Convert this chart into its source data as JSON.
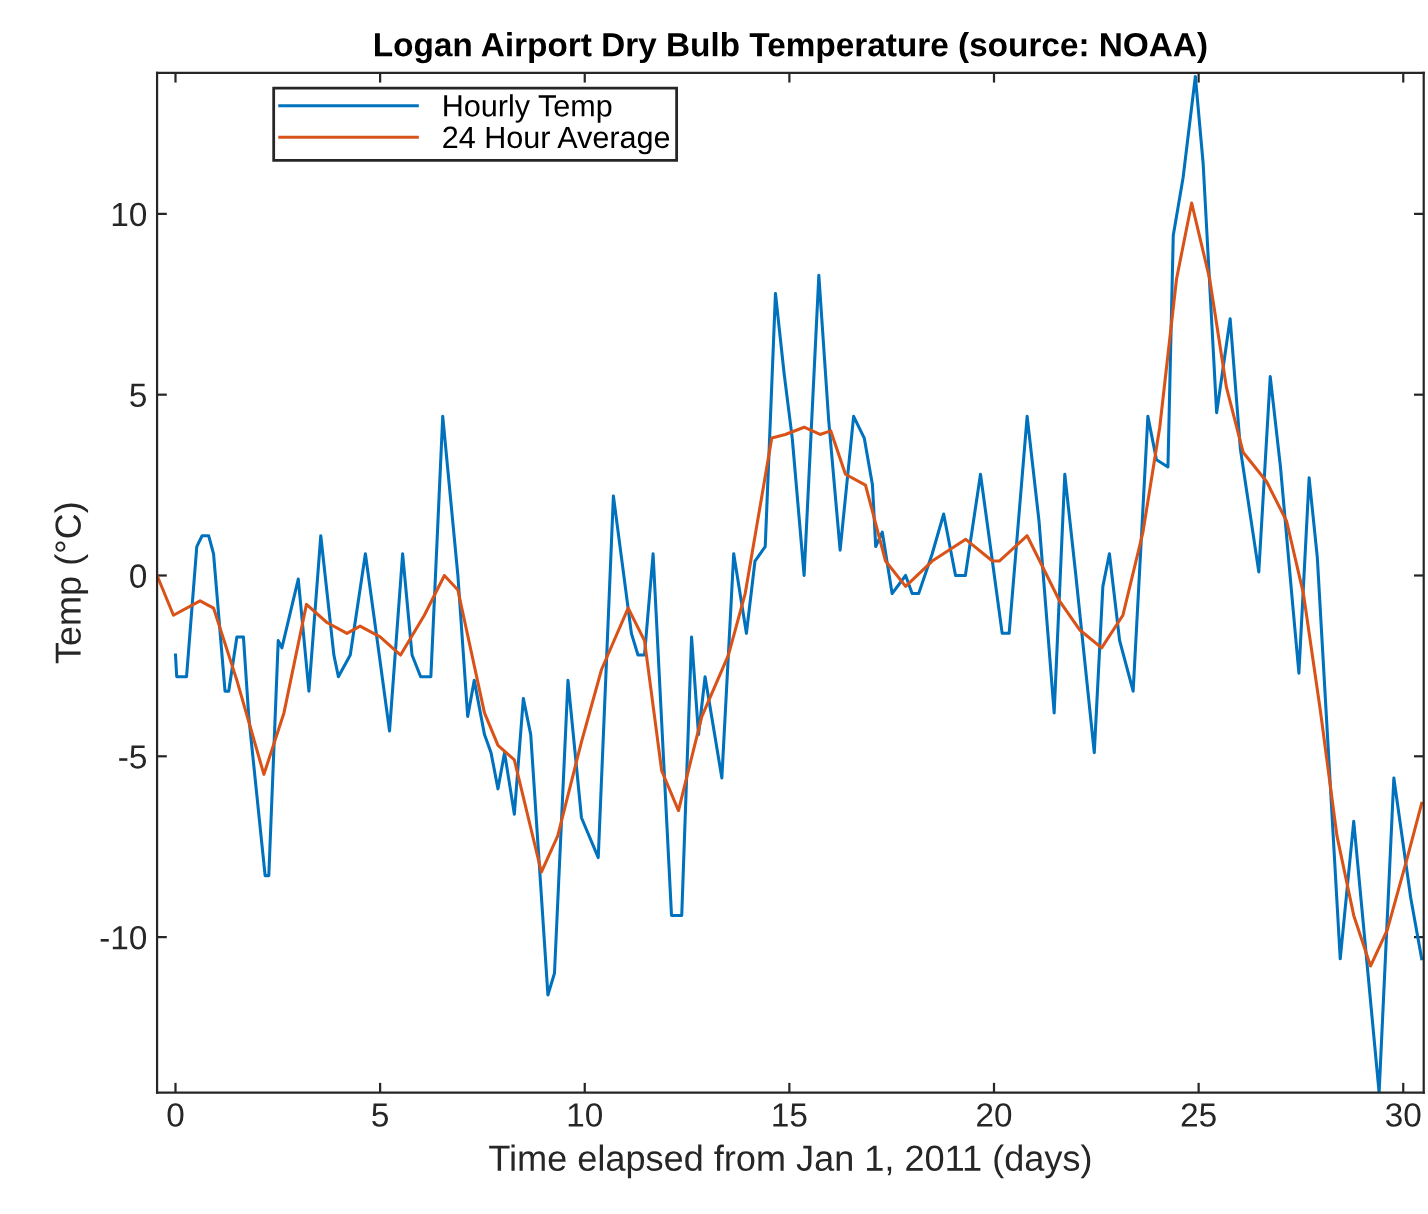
{
  "chart_data": {
    "type": "line",
    "title": "Logan Airport Dry Bulb Temperature (source: NOAA)",
    "xlabel": "Time elapsed from Jan 1, 2011 (days)",
    "ylabel": "Temp (°C)",
    "xlim": [
      -0.45,
      30.5
    ],
    "ylim": [
      -14.3,
      13.9
    ],
    "xticks": [
      0,
      5,
      10,
      15,
      20,
      25,
      30
    ],
    "yticks": [
      -10,
      -5,
      0,
      5,
      10
    ],
    "grid": false,
    "legend": "top left",
    "marker": "none",
    "line_style": "solid",
    "series": [
      {
        "name": "Hourly Temp",
        "color": "#0072bd",
        "x": [
          0,
          0.03,
          0.27,
          0.52,
          0.65,
          0.81,
          0.93,
          1.21,
          1.3,
          1.5,
          1.66,
          1.79,
          2.19,
          2.28,
          2.51,
          2.6,
          3.0,
          3.26,
          3.55,
          3.87,
          3.98,
          4.27,
          4.64,
          4.93,
          5.23,
          5.55,
          5.78,
          5.99,
          6.24,
          6.53,
          6.9,
          7.14,
          7.3,
          7.55,
          7.71,
          7.88,
          8.04,
          8.28,
          8.5,
          8.68,
          9.1,
          9.26,
          9.59,
          9.92,
          10.33,
          10.7,
          11.14,
          11.3,
          11.46,
          11.67,
          12.12,
          12.37,
          12.61,
          12.78,
          12.94,
          13.35,
          13.64,
          13.95,
          14.16,
          14.41,
          14.66,
          14.87,
          15.07,
          15.36,
          15.72,
          15.96,
          16.24,
          16.57,
          16.83,
          17.03,
          17.11,
          17.27,
          17.51,
          17.84,
          18.0,
          18.16,
          18.49,
          18.77,
          19.06,
          19.3,
          19.67,
          19.96,
          20.2,
          20.37,
          20.81,
          21.1,
          21.47,
          21.73,
          22.0,
          22.45,
          22.66,
          22.82,
          23.07,
          23.4,
          23.76,
          23.97,
          24.25,
          24.38,
          24.62,
          24.92,
          25.11,
          25.44,
          25.77,
          26.02,
          26.47,
          26.75,
          27.0,
          27.29,
          27.45,
          27.7,
          27.9,
          28.46,
          28.79,
          29.41,
          29.77,
          30.18,
          30.45
        ],
        "values": [
          -2.2,
          -2.8,
          -2.8,
          0.8,
          1.1,
          1.1,
          0.6,
          -3.2,
          -3.2,
          -1.7,
          -1.7,
          -3.9,
          -8.3,
          -8.3,
          -1.8,
          -2.0,
          -0.1,
          -3.2,
          1.1,
          -2.2,
          -2.8,
          -2.2,
          0.6,
          -1.8,
          -4.3,
          0.6,
          -2.2,
          -2.8,
          -2.8,
          4.4,
          0.0,
          -3.9,
          -2.9,
          -4.4,
          -4.9,
          -5.9,
          -4.9,
          -6.6,
          -3.4,
          -4.4,
          -11.6,
          -11.0,
          -2.9,
          -6.7,
          -7.8,
          2.2,
          -1.6,
          -2.2,
          -2.2,
          0.6,
          -9.4,
          -9.4,
          -1.7,
          -4.4,
          -2.8,
          -5.6,
          0.6,
          -1.6,
          0.4,
          0.8,
          7.8,
          5.6,
          3.8,
          0.0,
          8.3,
          4.3,
          0.7,
          4.4,
          3.8,
          2.5,
          0.8,
          1.2,
          -0.5,
          0.0,
          -0.5,
          -0.5,
          0.6,
          1.7,
          0.0,
          0.0,
          2.8,
          0.4,
          -1.6,
          -1.6,
          4.4,
          1.5,
          -3.8,
          2.8,
          0.0,
          -4.9,
          -0.3,
          0.6,
          -1.8,
          -3.2,
          4.4,
          3.2,
          3.0,
          9.4,
          11.0,
          13.8,
          11.4,
          4.5,
          7.1,
          3.5,
          0.1,
          5.5,
          3.0,
          -0.7,
          -2.7,
          2.7,
          0.5,
          -10.6,
          -6.8,
          -14.3,
          -5.6,
          -8.9,
          -10.6
        ]
      },
      {
        "name": "24 Hour Average",
        "color": "#d95319",
        "x": [
          -0.45,
          -0.05,
          0.6,
          0.93,
          1.5,
          2.16,
          2.65,
          3.2,
          3.7,
          4.19,
          4.51,
          5.0,
          5.5,
          6.08,
          6.57,
          6.9,
          7.55,
          7.88,
          8.28,
          8.94,
          9.34,
          9.92,
          10.41,
          11.06,
          11.46,
          11.88,
          12.29,
          12.86,
          13.51,
          13.92,
          14.57,
          14.9,
          15.36,
          15.75,
          16.01,
          16.37,
          16.86,
          17.35,
          17.84,
          18.49,
          19.31,
          19.96,
          20.13,
          20.81,
          21.6,
          22.09,
          22.63,
          23.15,
          23.64,
          24.05,
          24.46,
          24.83,
          25.27,
          25.68,
          26.09,
          26.66,
          27.15,
          27.56,
          27.97,
          28.38,
          28.79,
          29.2,
          29.61,
          30.1,
          30.45
        ],
        "values": [
          0.0,
          -1.1,
          -0.7,
          -0.9,
          -2.9,
          -5.5,
          -3.8,
          -0.8,
          -1.3,
          -1.6,
          -1.4,
          -1.7,
          -2.2,
          -1.1,
          0.0,
          -0.4,
          -3.8,
          -4.7,
          -5.1,
          -8.2,
          -7.2,
          -4.6,
          -2.6,
          -0.9,
          -1.8,
          -5.4,
          -6.5,
          -3.9,
          -2.2,
          -0.5,
          3.8,
          3.9,
          4.1,
          3.9,
          4.0,
          2.8,
          2.5,
          0.4,
          -0.3,
          0.4,
          1.0,
          0.4,
          0.4,
          1.1,
          -0.7,
          -1.5,
          -2.0,
          -1.1,
          1.2,
          4.1,
          8.2,
          10.3,
          8.2,
          5.2,
          3.4,
          2.6,
          1.5,
          -0.5,
          -3.7,
          -7.2,
          -9.4,
          -10.8,
          -9.8,
          -7.8,
          -6.3
        ]
      }
    ]
  }
}
